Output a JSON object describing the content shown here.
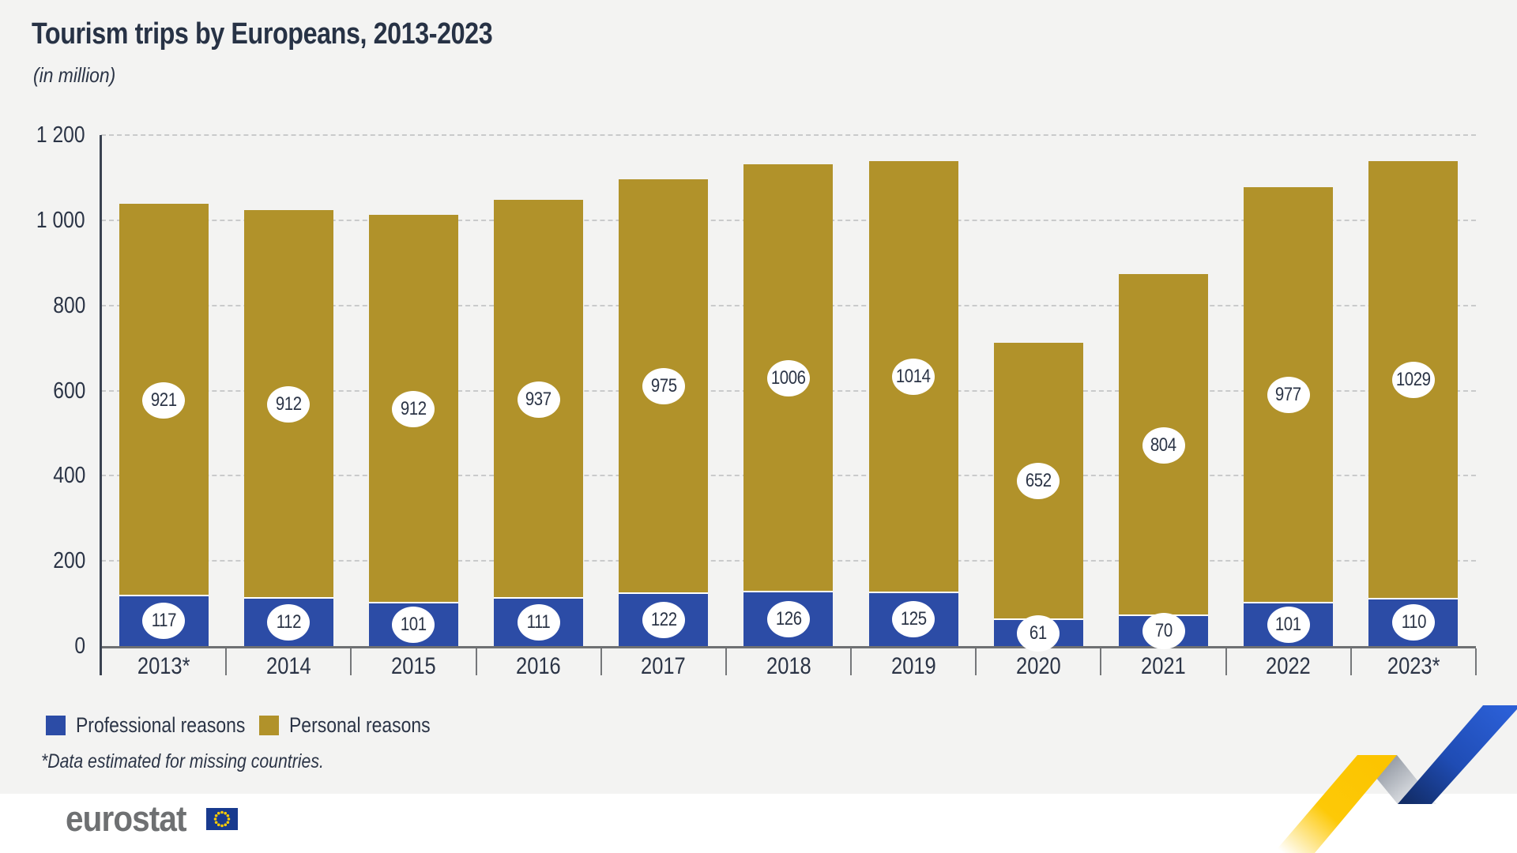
{
  "header": {
    "title": "Tourism trips by Europeans, 2013-2023",
    "subtitle": "(in million)"
  },
  "chart_data": {
    "type": "bar",
    "stacked": true,
    "title": "Tourism trips by Europeans, 2013-2023",
    "subtitle": "(in million)",
    "categories": [
      "2013*",
      "2014",
      "2015",
      "2016",
      "2017",
      "2018",
      "2019",
      "2020",
      "2021",
      "2022",
      "2023*"
    ],
    "series": [
      {
        "name": "Professional reasons",
        "color": "#2c4ca6",
        "values": [
          117,
          112,
          101,
          111,
          122,
          126,
          125,
          61,
          70,
          101,
          110
        ]
      },
      {
        "name": "Personal reasons",
        "color": "#b1922a",
        "values": [
          921,
          912,
          912,
          937,
          975,
          1006,
          1014,
          652,
          804,
          977,
          1029
        ]
      }
    ],
    "totals": [
      1038,
      1024,
      1013,
      1048,
      1097,
      1132,
      1139,
      713,
      874,
      1078,
      1139
    ],
    "ylim": [
      0,
      1200
    ],
    "yticks": [
      0,
      200,
      400,
      600,
      800,
      1000,
      1200
    ],
    "ytick_labels": [
      "0",
      "200",
      "400",
      "600",
      "800",
      "1 000",
      "1 200"
    ],
    "grid": "horizontal-dashed",
    "legend_position": "bottom-left",
    "value_labels": "white circular badges at segment centers"
  },
  "footnote": "*Data estimated for missing countries.",
  "logo": {
    "text": "eurostat"
  },
  "colors": {
    "background": "#f3f3f2",
    "professional_blue": "#2c4ca6",
    "personal_gold": "#b1922a",
    "axis_dark": "#3a4251",
    "axis_gray": "#6e7073",
    "eurostat_gray": "#6e7072",
    "eu_flag_blue": "#183a8e",
    "eu_star_yellow": "#ffcc00",
    "ribbon_yellow": "#fdc606",
    "ribbon_blue": "#2b5fd6"
  }
}
